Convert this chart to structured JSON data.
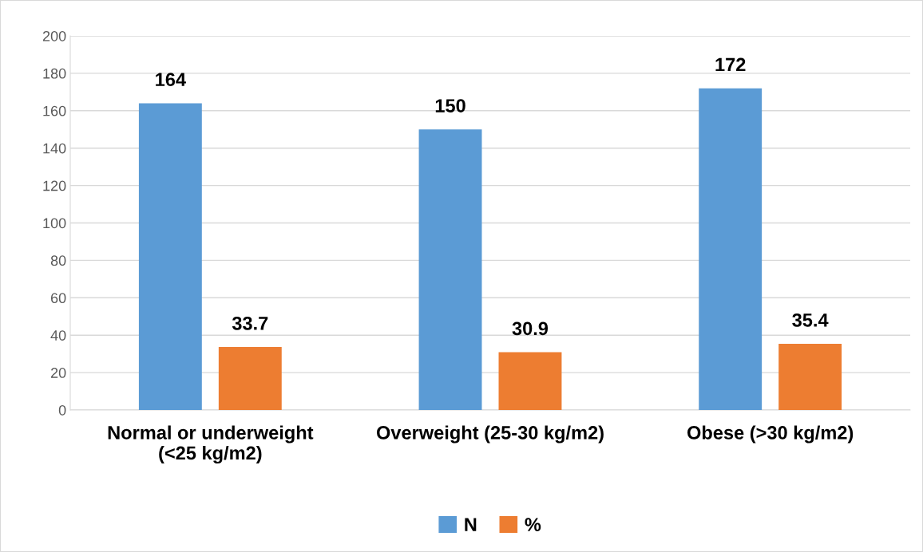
{
  "chart_data": {
    "type": "bar",
    "categories": [
      "Normal or underweight\n(<25 kg/m2)",
      "Overweight (25-30 kg/m2)",
      "Obese (>30 kg/m2)"
    ],
    "series": [
      {
        "name": "N",
        "color": "#5b9bd5",
        "values": [
          164,
          150,
          172
        ]
      },
      {
        "name": "%",
        "color": "#ed7d31",
        "values": [
          33.7,
          30.9,
          35.4
        ]
      }
    ],
    "ylim": [
      0,
      200
    ],
    "yticks": [
      0,
      20,
      40,
      60,
      80,
      100,
      120,
      140,
      160,
      180,
      200
    ],
    "grid": "y",
    "legend": "bottom",
    "data_labels": true
  }
}
